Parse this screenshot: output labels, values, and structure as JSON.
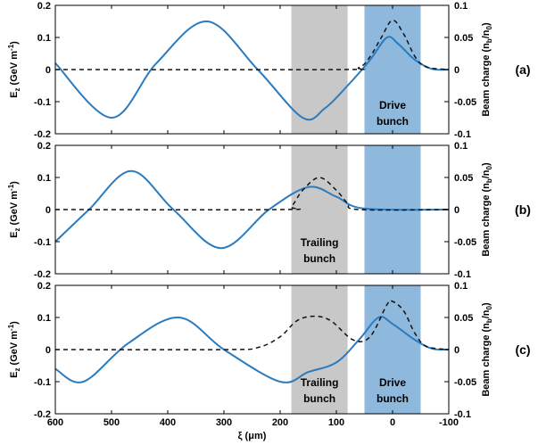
{
  "chart_data": {
    "type": "line",
    "xlabel": "ξ (μm)",
    "xlim": [
      600,
      -100
    ],
    "x_ticks": [
      "600",
      "500",
      "400",
      "300",
      "200",
      "100",
      "0",
      "-100"
    ],
    "left_axis": {
      "label_main": "E",
      "label_sub": "z",
      "label_unit": " (GeV m",
      "label_sup": "-1",
      "label_close": ")",
      "ylim": [
        -0.2,
        0.2
      ],
      "ticks": [
        "0.2",
        "0.1",
        "0",
        "-0.1",
        "-0.2"
      ]
    },
    "right_axis": {
      "label_main": "Beam charge (n",
      "label_sub1": "b",
      "label_mid": "/n",
      "label_sub2": "0",
      "label_close": ")",
      "ylim": [
        -0.1,
        0.1
      ],
      "ticks": [
        "0.1",
        "0.05",
        "0",
        "-0.05",
        "-0.1"
      ]
    },
    "colors": {
      "field": "#2a7bbf",
      "charge": "#111111",
      "trailing_region": "#c8c8c8",
      "drive_region": "#8fb8dd"
    },
    "regions": {
      "trailing": {
        "x_from": 180,
        "x_to": 80
      },
      "drive": {
        "x_from": 50,
        "x_to": -50
      }
    },
    "panels": [
      {
        "label": "(a)",
        "region_texts": {
          "trailing": [],
          "drive": [
            "Drive",
            "bunch"
          ]
        },
        "field_points": [
          [
            600,
            0.02
          ],
          [
            500,
            -0.15
          ],
          [
            420,
            0.02
          ],
          [
            330,
            0.15
          ],
          [
            240,
            0.0
          ],
          [
            160,
            -0.15
          ],
          [
            120,
            -0.12
          ],
          [
            80,
            -0.05
          ],
          [
            40,
            0.03
          ],
          [
            10,
            0.1
          ],
          [
            -10,
            0.08
          ],
          [
            -40,
            0.03
          ],
          [
            -70,
            0.002
          ],
          [
            -100,
            0.0
          ]
        ],
        "charge_points": [
          [
            600,
            0.0
          ],
          [
            100,
            0.0
          ],
          [
            60,
            0.003
          ],
          [
            40,
            0.02
          ],
          [
            20,
            0.05
          ],
          [
            0,
            0.077
          ],
          [
            -20,
            0.055
          ],
          [
            -40,
            0.02
          ],
          [
            -60,
            0.004
          ],
          [
            -100,
            0.0
          ]
        ]
      },
      {
        "label": "(b)",
        "region_texts": {
          "trailing": [
            "Trailing",
            "bunch"
          ],
          "drive": []
        },
        "field_points": [
          [
            600,
            -0.1
          ],
          [
            540,
            0.0
          ],
          [
            465,
            0.12
          ],
          [
            390,
            0.0
          ],
          [
            305,
            -0.12
          ],
          [
            220,
            0.0
          ],
          [
            150,
            0.07
          ],
          [
            100,
            0.04
          ],
          [
            50,
            0.003
          ],
          [
            -100,
            0.0
          ]
        ],
        "charge_points": [
          [
            600,
            0.0
          ],
          [
            200,
            0.0
          ],
          [
            180,
            0.005
          ],
          [
            160,
            0.03
          ],
          [
            130,
            0.05
          ],
          [
            100,
            0.03
          ],
          [
            80,
            0.01
          ],
          [
            60,
            0.0
          ],
          [
            -100,
            0.0
          ]
        ]
      },
      {
        "label": "(c)",
        "region_texts": {
          "trailing": [
            "Trailing",
            "bunch"
          ],
          "drive": [
            "Drive",
            "bunch"
          ]
        },
        "field_points": [
          [
            600,
            -0.06
          ],
          [
            550,
            -0.1
          ],
          [
            470,
            0.02
          ],
          [
            380,
            0.1
          ],
          [
            300,
            0.0
          ],
          [
            200,
            -0.1
          ],
          [
            150,
            -0.07
          ],
          [
            100,
            -0.04
          ],
          [
            60,
            0.03
          ],
          [
            25,
            0.1
          ],
          [
            0,
            0.08
          ],
          [
            -40,
            0.03
          ],
          [
            -70,
            0.003
          ],
          [
            -100,
            0.0
          ]
        ],
        "charge_points": [
          [
            600,
            0.0
          ],
          [
            300,
            0.0
          ],
          [
            240,
            0.003
          ],
          [
            200,
            0.02
          ],
          [
            170,
            0.045
          ],
          [
            140,
            0.052
          ],
          [
            110,
            0.045
          ],
          [
            70,
            0.015
          ],
          [
            40,
            0.02
          ],
          [
            10,
            0.07
          ],
          [
            0,
            0.075
          ],
          [
            -20,
            0.06
          ],
          [
            -40,
            0.025
          ],
          [
            -60,
            0.005
          ],
          [
            -100,
            0.0
          ]
        ]
      }
    ]
  }
}
